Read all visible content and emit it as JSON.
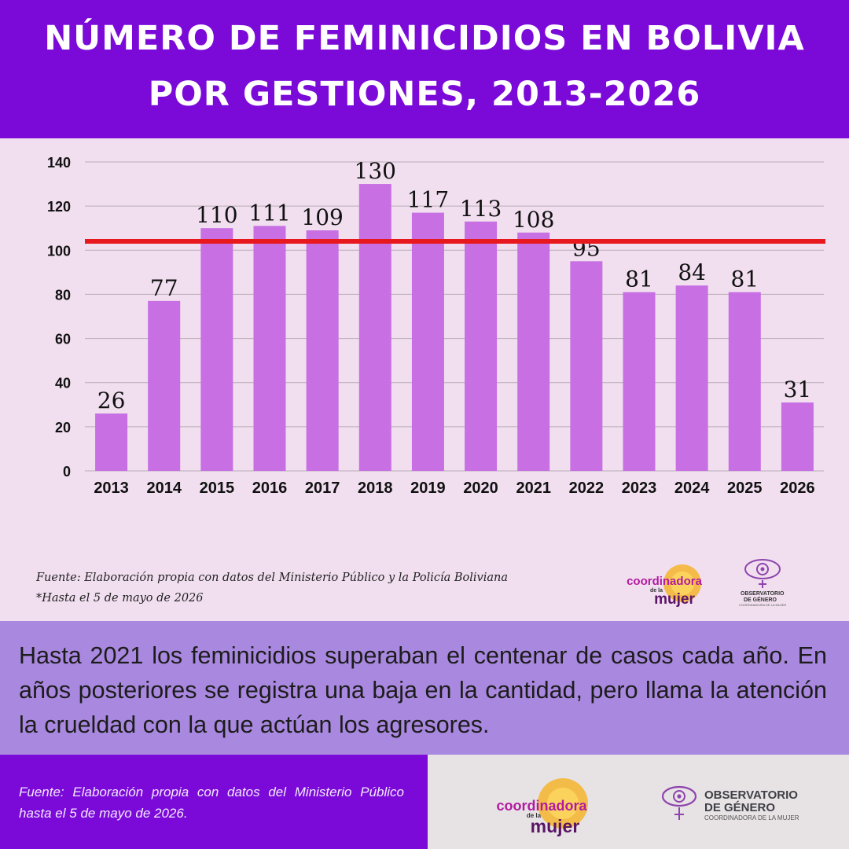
{
  "header": {
    "title_line1": "NÚMERO DE FEMINICIDIOS EN BOLIVIA",
    "title_line2": "POR GESTIONES, 2013-2026"
  },
  "chart_data": {
    "type": "bar",
    "categories": [
      "2013",
      "2014",
      "2015",
      "2016",
      "2017",
      "2018",
      "2019",
      "2020",
      "2021",
      "2022",
      "2023",
      "2024",
      "2025",
      "2026"
    ],
    "values": [
      26,
      77,
      110,
      111,
      109,
      130,
      117,
      113,
      108,
      95,
      81,
      84,
      81,
      31
    ],
    "ylim": [
      0,
      140
    ],
    "yticks": [
      0,
      20,
      40,
      60,
      80,
      100,
      120,
      140
    ],
    "reference_line": 104,
    "bar_color": "#c76fe3",
    "reference_color": "#e8181f",
    "grid": true
  },
  "source": {
    "line1": "Fuente: Elaboración propia con datos del Ministerio Público y la Policía Boliviana",
    "line2": "*Hasta el  5 de mayo  de 2026"
  },
  "logos": {
    "coordinadora": {
      "line1": "coordinadora",
      "line2": "de la",
      "line3": "mujer"
    },
    "observatorio": {
      "line1": "OBSERVATORIO",
      "line2": "DE GÉNERO",
      "line3": "COORDINADORA DE LA MUJER"
    }
  },
  "summary": {
    "text": "Hasta 2021 los feminicidios superaban el centenar de casos cada año. En años posteriores se registra una baja en la cantidad, pero llama la atención la crueldad con la que actúan los agresores."
  },
  "footer": {
    "source_text": "Fuente: Elaboración propia con datos del Ministerio Público  hasta el 5 de mayo de 2026."
  },
  "colors": {
    "purple_dark": "#7b0ad8",
    "lavender": "#a988df",
    "chart_bg": "#f1dff0",
    "bar": "#c76fe3",
    "reference": "#e8181f"
  }
}
